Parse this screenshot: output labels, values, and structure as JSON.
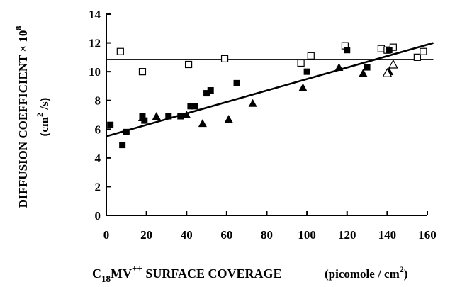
{
  "chart_data": {
    "type": "scatter",
    "title": "",
    "xlabel": {
      "main": "C",
      "sub": "18",
      "mid": "MV",
      "sup": "++",
      "rest": " SURFACE COVERAGE",
      "units_pre": "(picomole / cm",
      "units_sup": "2",
      "units_post": ")"
    },
    "ylabel": {
      "line1_pre": "DIFFUSION COEFFICIENT × 10",
      "line1_sup": "8",
      "line2_pre": "(cm",
      "line2_sup": "2",
      "line2_post": " /s)"
    },
    "xlim": [
      0,
      160
    ],
    "ylim": [
      0,
      14
    ],
    "xticks": [
      "0",
      "20",
      "40",
      "60",
      "80",
      "100",
      "120",
      "140",
      "160"
    ],
    "yticks": [
      "0",
      "2",
      "4",
      "6",
      "8",
      "10",
      "12",
      "14"
    ],
    "grid": false,
    "legend": "none",
    "series": [
      {
        "marker": "open-square",
        "points": [
          [
            7,
            11.4
          ],
          [
            18,
            10.0
          ],
          [
            41,
            10.5
          ],
          [
            59,
            10.9
          ],
          [
            97,
            10.6
          ],
          [
            102,
            11.1
          ],
          [
            119,
            11.8
          ],
          [
            137,
            11.6
          ],
          [
            140,
            11.5
          ],
          [
            143,
            11.7
          ],
          [
            155,
            11.0
          ],
          [
            158,
            11.4
          ]
        ]
      },
      {
        "marker": "filled-square",
        "points": [
          [
            2,
            6.3
          ],
          [
            8,
            4.9
          ],
          [
            10,
            5.8
          ],
          [
            18,
            6.9
          ],
          [
            19,
            6.6
          ],
          [
            31,
            6.9
          ],
          [
            37,
            6.9
          ],
          [
            42,
            7.6
          ],
          [
            44,
            7.6
          ],
          [
            50,
            8.5
          ],
          [
            52,
            8.7
          ],
          [
            65,
            9.2
          ],
          [
            100,
            10.0
          ],
          [
            120,
            11.5
          ],
          [
            130,
            10.3
          ],
          [
            141,
            11.5
          ]
        ]
      },
      {
        "marker": "filled-triangle",
        "points": [
          [
            18,
            6.8
          ],
          [
            25,
            6.9
          ],
          [
            40,
            7.0
          ],
          [
            48,
            6.4
          ],
          [
            61,
            6.7
          ],
          [
            73,
            7.8
          ],
          [
            98,
            8.9
          ],
          [
            116,
            10.3
          ],
          [
            128,
            9.9
          ],
          [
            141,
            10.0
          ],
          [
            143,
            10.5
          ]
        ]
      },
      {
        "marker": "open-triangle",
        "points": [
          [
            140,
            9.9
          ],
          [
            143,
            10.5
          ]
        ]
      }
    ],
    "fit_lines": [
      {
        "style": "horizontal",
        "x": [
          0,
          163
        ],
        "y": [
          10.85,
          10.85
        ]
      },
      {
        "style": "regression",
        "x": [
          0,
          163
        ],
        "y": [
          5.5,
          12.0
        ]
      }
    ]
  }
}
